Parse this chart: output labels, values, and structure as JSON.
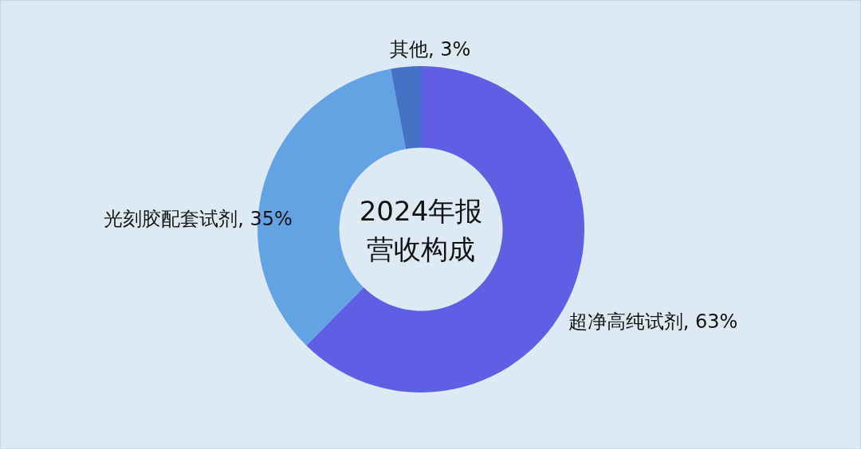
{
  "chart_data": {
    "type": "donut",
    "title": "2024年报营收构成",
    "categories": [
      "超净高纯试剂",
      "光刻胶配套试剂",
      "其他"
    ],
    "values": [
      63,
      35,
      3
    ],
    "value_labels": [
      "63%",
      "35%",
      "3%"
    ],
    "colors": [
      "#5f5fe6",
      "#63a3e3",
      "#4472c4"
    ],
    "legend": false
  }
}
